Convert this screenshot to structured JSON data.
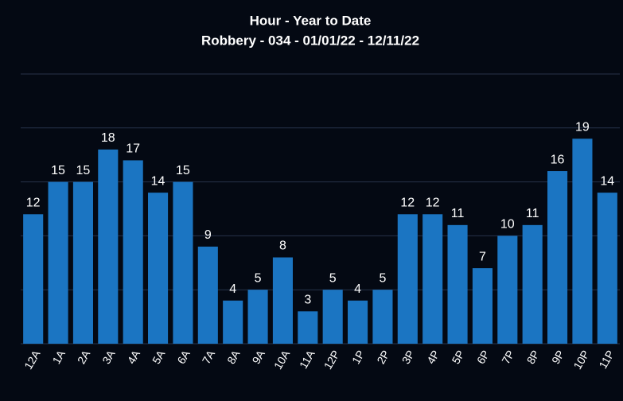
{
  "chart_data": {
    "type": "bar",
    "title": "Hour - Year to Date",
    "subtitle": "Robbery - 034 - 01/01/22 - 12/11/22",
    "categories": [
      "12A",
      "1A",
      "2A",
      "3A",
      "4A",
      "5A",
      "6A",
      "7A",
      "8A",
      "9A",
      "10A",
      "11A",
      "12P",
      "1P",
      "2P",
      "3P",
      "4P",
      "5P",
      "6P",
      "7P",
      "8P",
      "9P",
      "10P",
      "11P"
    ],
    "values": [
      12,
      15,
      15,
      18,
      17,
      14,
      15,
      9,
      4,
      5,
      8,
      3,
      5,
      4,
      5,
      12,
      12,
      11,
      7,
      10,
      11,
      16,
      19,
      14
    ],
    "color": "#1b75c2",
    "ylim": [
      0,
      25
    ],
    "yticks": [
      0,
      5,
      10,
      15,
      20,
      25
    ],
    "grid": true
  }
}
